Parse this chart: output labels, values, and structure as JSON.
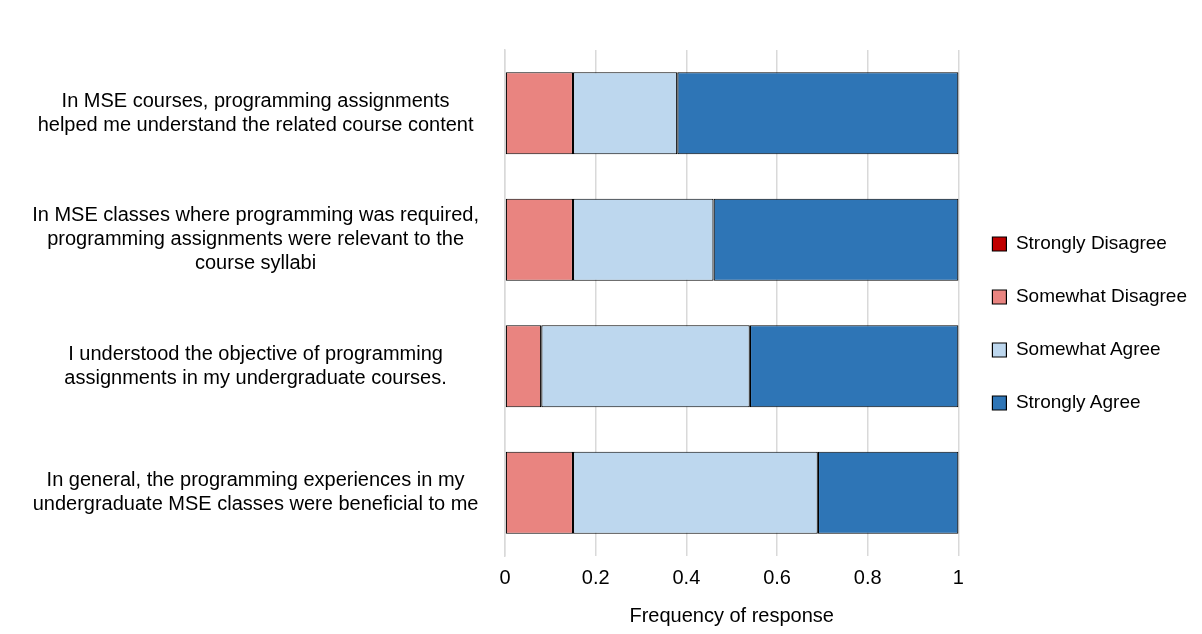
{
  "chart_data": {
    "type": "bar",
    "orientation": "horizontal",
    "stacked": true,
    "xlabel": "Frequency of response",
    "categories": [
      "In MSE courses, programming assignments helped me understand the related course content",
      "In MSE classes where programming was required, programming assignments were relevant to the course syllabi",
      "I understood the objective of programming assignments in my undergraduate courses.",
      "In general, the programming experiences in my undergraduate MSE classes were beneficial to me"
    ],
    "series": [
      {
        "name": "Strongly Disagree",
        "color": "#c00000",
        "values": [
          0,
          0,
          0,
          0
        ]
      },
      {
        "name": "Somewhat Disagree",
        "color": "#e98480",
        "values": [
          0.15,
          0.15,
          0.08,
          0.15
        ]
      },
      {
        "name": "Somewhat Agree",
        "color": "#bdd7ee",
        "values": [
          0.23,
          0.31,
          0.46,
          0.54
        ]
      },
      {
        "name": "Strongly Agree",
        "color": "#2e75b6",
        "values": [
          0.62,
          0.54,
          0.46,
          0.31
        ]
      }
    ],
    "xlim": [
      0,
      1
    ],
    "xticks": [
      0,
      0.2,
      0.4,
      0.6,
      0.8,
      1
    ],
    "grid": "x",
    "legend": "right"
  }
}
